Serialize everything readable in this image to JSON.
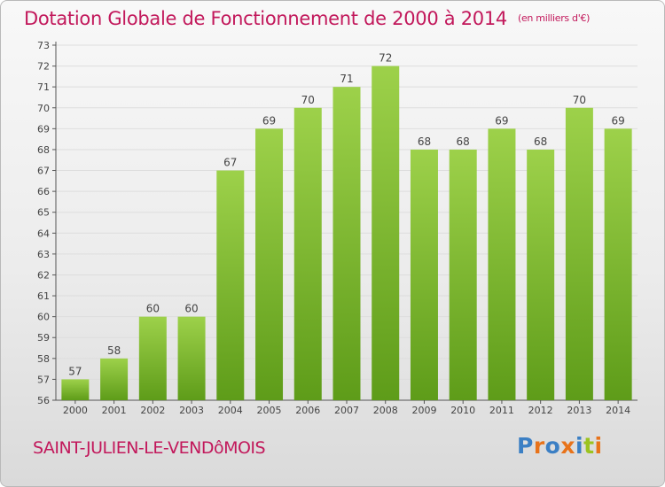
{
  "header": {
    "title": "Dotation Globale de Fonctionnement de 2000 à 2014",
    "unit": "(en milliers d'€)"
  },
  "footer": {
    "commune": "SAINT-JULIEN-LE-VENDôMOIS",
    "logo_text": "Proxiti",
    "logo_colors": [
      "#3b7fc4",
      "#e8731a",
      "#3b7fc4",
      "#e8731a",
      "#3b7fc4",
      "#9cc320",
      "#e8731a"
    ]
  },
  "colors": {
    "bar_light": "#9dd14a",
    "bar_dark": "#5e9c19",
    "title": "#c2185b",
    "grid": "#dddddd",
    "axis": "#555555",
    "text": "#444444"
  },
  "chart_data": {
    "type": "bar",
    "categories": [
      "2000",
      "2001",
      "2002",
      "2003",
      "2004",
      "2005",
      "2006",
      "2007",
      "2008",
      "2009",
      "2010",
      "2011",
      "2012",
      "2013",
      "2014"
    ],
    "values": [
      57,
      58,
      60,
      60,
      67,
      69,
      70,
      71,
      72,
      68,
      68,
      69,
      68,
      70,
      69
    ],
    "ylim": [
      56,
      73
    ],
    "yticks": [
      56,
      57,
      58,
      59,
      60,
      61,
      62,
      63,
      64,
      65,
      66,
      67,
      68,
      69,
      70,
      71,
      72,
      73
    ],
    "data_labels": true,
    "grid": true,
    "title": "Dotation Globale de Fonctionnement de 2000 à 2014",
    "xlabel": "",
    "ylabel": ""
  }
}
